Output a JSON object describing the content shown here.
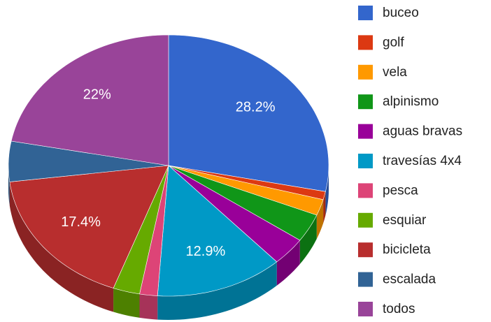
{
  "chart_data": {
    "type": "pie",
    "is_3d": true,
    "categories": [
      "buceo",
      "golf",
      "vela",
      "alpinismo",
      "aguas bravas",
      "travesías 4x4",
      "pesca",
      "esquiar",
      "bicicleta",
      "escalada",
      "todos"
    ],
    "values": [
      28.2,
      1,
      2,
      3.5,
      3.5,
      12.9,
      1.8,
      2.7,
      17.4,
      5,
      22
    ],
    "value_labels": [
      "28.2%",
      null,
      null,
      null,
      null,
      "12.9%",
      null,
      null,
      "17.4%",
      null,
      "22%"
    ],
    "colors": [
      "#3366cc",
      "#dc3912",
      "#ff9900",
      "#109618",
      "#990099",
      "#0099c6",
      "#dd4477",
      "#66aa00",
      "#b82e2e",
      "#316395",
      "#994499"
    ],
    "legend": "right"
  }
}
